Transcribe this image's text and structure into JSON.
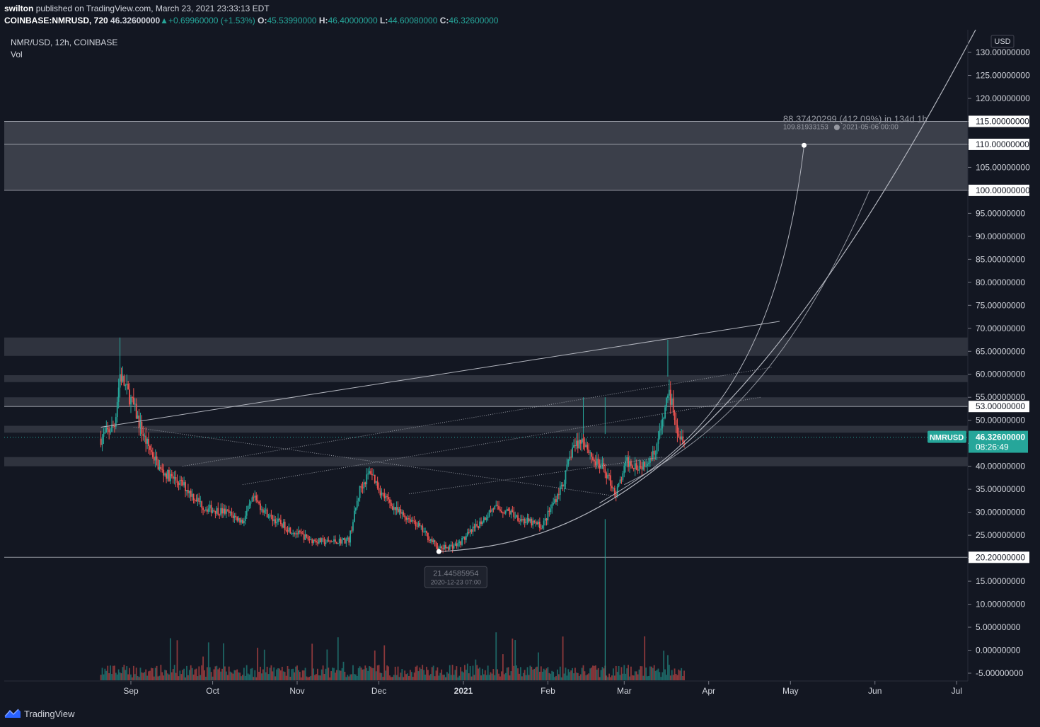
{
  "header": {
    "author": "swilton",
    "published_text": "published on TradingView.com, March 23, 2021 23:33:13 EDT",
    "symbol": "COINBASE:NMRUSD, 720",
    "last_price": "46.32600000",
    "change": "+0.69960000 (+1.53%)",
    "o_label": "O:",
    "o_value": "45.53990000",
    "h_label": "H:",
    "h_value": "46.40000000",
    "l_label": "L:",
    "l_value": "44.60080000",
    "c_label": "C:",
    "c_value": "46.32600000"
  },
  "legend": {
    "pair": "NMR/USD, 12h, COINBASE",
    "vol": "Vol"
  },
  "currency": "USD",
  "footer": {
    "brand": "TradingView"
  },
  "colors": {
    "background": "#131722",
    "up": "#26a69a",
    "down": "#ef5350",
    "zone": "#434651",
    "line": "#b2b5be"
  },
  "chart_data": {
    "type": "candlestick",
    "x_ticks": [
      "Sep",
      "Oct",
      "Nov",
      "Dec",
      "2021",
      "Feb",
      "Mar",
      "Apr",
      "May",
      "Jun",
      "Jul"
    ],
    "y_ticks": [
      "130.00000000",
      "125.00000000",
      "120.00000000",
      "115.00000000",
      "110.00000000",
      "105.00000000",
      "100.00000000",
      "95.00000000",
      "90.00000000",
      "85.00000000",
      "80.00000000",
      "75.00000000",
      "70.00000000",
      "65.00000000",
      "60.00000000",
      "55.00000000",
      "50.00000000",
      "45.00000000",
      "40.00000000",
      "35.00000000",
      "30.00000000",
      "25.00000000",
      "20.00000000",
      "15.00000000",
      "10.00000000",
      "5.00000000",
      "0.00000000",
      "-5.00000000"
    ],
    "ylim": [
      -7,
      133
    ],
    "price_labels": [
      {
        "value": 115,
        "text": "115.00000000"
      },
      {
        "value": 110,
        "text": "110.00000000"
      },
      {
        "value": 100,
        "text": "100.00000000"
      },
      {
        "value": 53,
        "text": "53.00000000"
      },
      {
        "value": 20.2,
        "text": "20.20000000"
      }
    ],
    "current_price": {
      "symbol": "NMRUSD",
      "value": 46.326,
      "text": "46.32600000",
      "countdown": "08:26:49"
    },
    "zones": [
      {
        "from": 100,
        "to": 115
      },
      {
        "from": 64,
        "to": 68
      },
      {
        "from": 58.3,
        "to": 59.8
      },
      {
        "from": 53,
        "to": 55
      },
      {
        "from": 47.3,
        "to": 48.8
      },
      {
        "from": 40,
        "to": 42
      }
    ],
    "projection": {
      "text": "88.37420299 (412.09%) in 134d 1h",
      "target_price": "109.81933153",
      "target_date": "2021-05-06  00:00"
    },
    "low_marker": {
      "price": "21.44585954",
      "date": "2020-12-23  07:00"
    },
    "price_path": [
      [
        "2020-08-21",
        46
      ],
      [
        "2020-08-26",
        49
      ],
      [
        "2020-08-28",
        60
      ],
      [
        "2020-09-02",
        53
      ],
      [
        "2020-09-06",
        46
      ],
      [
        "2020-09-12",
        39
      ],
      [
        "2020-09-20",
        36
      ],
      [
        "2020-09-28",
        31
      ],
      [
        "2020-10-06",
        30
      ],
      [
        "2020-10-12",
        28
      ],
      [
        "2020-10-16",
        33
      ],
      [
        "2020-10-22",
        29
      ],
      [
        "2020-10-30",
        26
      ],
      [
        "2020-11-06",
        24
      ],
      [
        "2020-11-12",
        23.5
      ],
      [
        "2020-11-20",
        24
      ],
      [
        "2020-11-24",
        35
      ],
      [
        "2020-11-28",
        39
      ],
      [
        "2020-12-02",
        34
      ],
      [
        "2020-12-08",
        30
      ],
      [
        "2020-12-14",
        28
      ],
      [
        "2020-12-20",
        24
      ],
      [
        "2020-12-23",
        22
      ],
      [
        "2020-12-30",
        23
      ],
      [
        "2021-01-06",
        27
      ],
      [
        "2021-01-12",
        31
      ],
      [
        "2021-01-18",
        30
      ],
      [
        "2021-01-24",
        28
      ],
      [
        "2021-01-30",
        27
      ],
      [
        "2021-02-03",
        32
      ],
      [
        "2021-02-07",
        37
      ],
      [
        "2021-02-10",
        44
      ],
      [
        "2021-02-14",
        46
      ],
      [
        "2021-02-18",
        41
      ],
      [
        "2021-02-22",
        39
      ],
      [
        "2021-02-26",
        34
      ],
      [
        "2021-03-02",
        41
      ],
      [
        "2021-03-07",
        40
      ],
      [
        "2021-03-12",
        43
      ],
      [
        "2021-03-15",
        49
      ],
      [
        "2021-03-17",
        56
      ],
      [
        "2021-03-19",
        53
      ],
      [
        "2021-03-21",
        47
      ],
      [
        "2021-03-23",
        46.3
      ]
    ]
  }
}
